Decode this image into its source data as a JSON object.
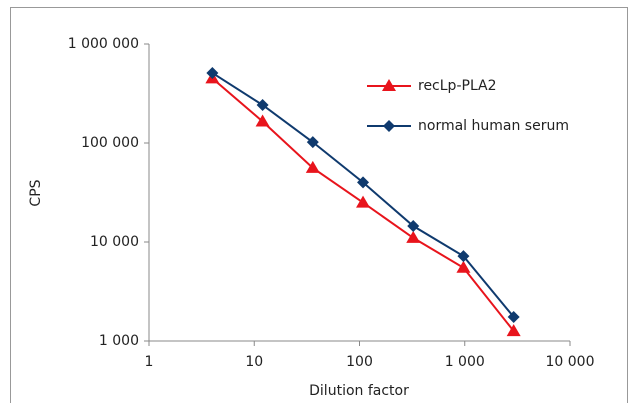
{
  "chart_data": {
    "type": "line",
    "x_label": "Dilution factor",
    "y_label": "CPS",
    "x": [
      4,
      12,
      36,
      108,
      324,
      972,
      2916
    ],
    "series": [
      {
        "name": "recLp-PLA2",
        "color": "#e8141c",
        "marker": "triangle",
        "values": [
          450000,
          165000,
          56000,
          25000,
          11000,
          5500,
          1260
        ]
      },
      {
        "name": "normal human serum",
        "color": "#0f3a6e",
        "marker": "diamond",
        "values": [
          510000,
          242000,
          102000,
          40000,
          14500,
          7200,
          1750
        ]
      }
    ],
    "xscale": "log",
    "yscale": "log",
    "xlim": [
      1,
      10000
    ],
    "ylim": [
      1000,
      1000000
    ],
    "xticks": [
      1,
      10,
      100,
      {
        "value": 1000,
        "label": "1 000"
      },
      {
        "value": 10000,
        "label": "10 000"
      }
    ],
    "yticks": [
      {
        "value": 1000,
        "label": "1 000"
      },
      {
        "value": 10000,
        "label": "10 000"
      },
      {
        "value": 100000,
        "label": "100 000"
      },
      {
        "value": 1000000,
        "label": "1 000 000"
      }
    ],
    "grid": false,
    "legend": "top-right"
  }
}
